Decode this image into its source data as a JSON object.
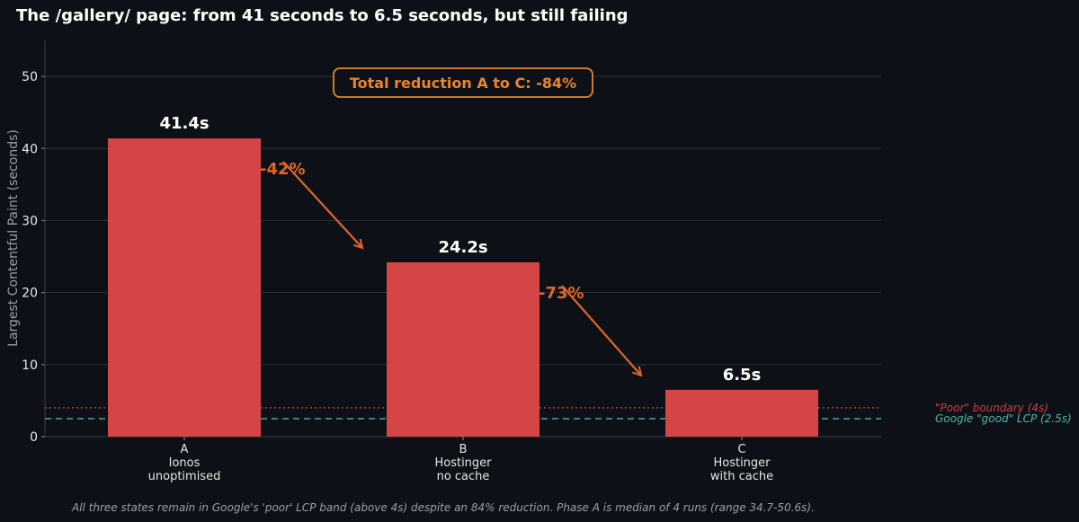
{
  "chart_data": {
    "type": "bar",
    "title": "The /gallery/ page: from 41 seconds to 6.5 seconds, but still failing",
    "ylabel": "Largest Contentful Paint (seconds)",
    "xlabel": "",
    "ylim": [
      0,
      55
    ],
    "yticks": [
      0,
      10,
      20,
      30,
      40,
      50
    ],
    "grid": true,
    "categories": [
      {
        "lines": [
          "A",
          "Ionos",
          "unoptimised"
        ]
      },
      {
        "lines": [
          "B",
          "Hostinger",
          "no cache"
        ]
      },
      {
        "lines": [
          "C",
          "Hostinger",
          "with cache"
        ]
      }
    ],
    "values": [
      41.4,
      24.2,
      6.5
    ],
    "data_labels": [
      "41.4s",
      "24.2s",
      "6.5s"
    ],
    "bar_color": "#d64545",
    "step_changes": [
      {
        "from": 0,
        "to": 1,
        "label": "-42%"
      },
      {
        "from": 1,
        "to": 2,
        "label": "-73%"
      }
    ],
    "annotation": "Total reduction A to C: -84%",
    "reference_lines": [
      {
        "y": 4,
        "label": "\"Poor\" boundary (4s)",
        "color": "#c94040",
        "style": "dotted"
      },
      {
        "y": 2.5,
        "label": "Google \"good\" LCP (2.5s)",
        "color": "#4db6ac",
        "style": "dashed"
      }
    ],
    "footnote": "All three states remain in Google's 'poor' LCP band (above 4s) despite an 84% reduction. Phase A is median of 4 runs (range 34.7-50.6s).",
    "colors": {
      "background": "#0d1117",
      "grid": "#2a2f36",
      "arrow": "#e0652a",
      "annotation": "#e8852e"
    }
  }
}
